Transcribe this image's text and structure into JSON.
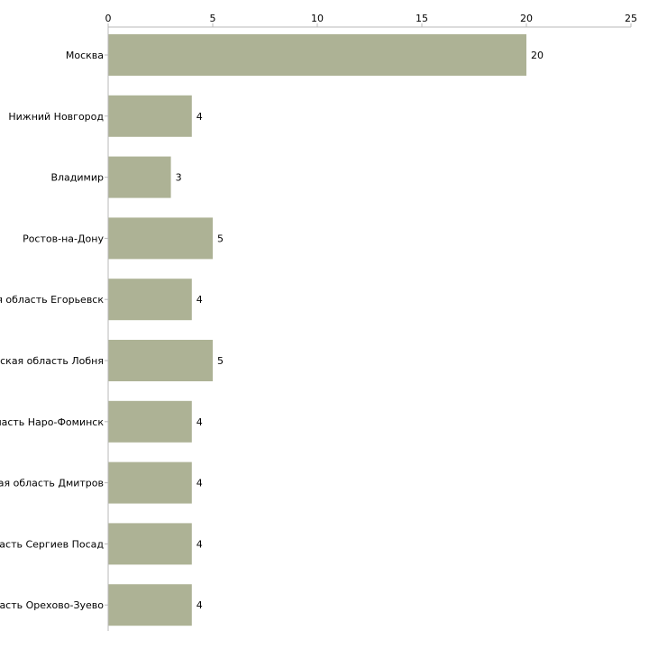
{
  "chart_data": {
    "type": "bar",
    "orientation": "horizontal",
    "categories": [
      "Москва",
      "Нижний Новгород",
      "Владимир",
      "Ростов-на-Дону",
      "ая область Егорьевск",
      "еская область Лобня",
      "бласть Наро-Фоминск",
      "кая область Дмитров",
      "ласть Сергиев Посад",
      "пасть Орехово-Зуево"
    ],
    "values": [
      20,
      4,
      3,
      5,
      4,
      5,
      4,
      4,
      4,
      4
    ],
    "xlim": [
      0,
      25
    ],
    "x_ticks": [
      "0",
      "5",
      "10",
      "15",
      "20",
      "25"
    ],
    "x_axis_position": "top",
    "data_labels": true,
    "grid": false,
    "legend": "none",
    "bar_color": "#adb295",
    "axis_color": "#b8b8b8",
    "title": "",
    "xlabel": "",
    "ylabel": ""
  }
}
